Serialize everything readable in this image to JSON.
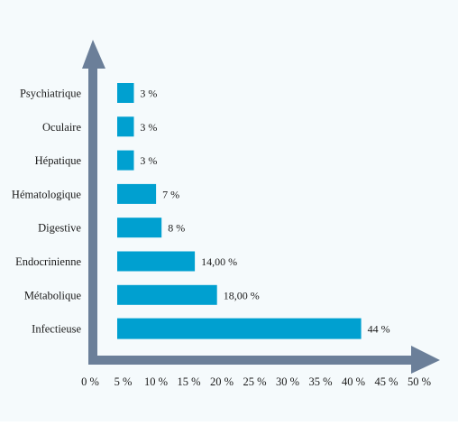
{
  "chart_data": {
    "type": "bar",
    "orientation": "horizontal",
    "title": "",
    "xlabel": "",
    "ylabel": "",
    "categories": [
      "Psychiatrique",
      "Oculaire",
      "Hépatique",
      "Hématologique",
      "Digestive",
      "Endocrinienne",
      "Métabolique",
      "Infectieuse"
    ],
    "values": [
      3,
      3,
      3,
      7,
      8,
      14,
      18,
      44
    ],
    "value_labels": [
      "3 %",
      "3 %",
      "3 %",
      "7 %",
      "8 %",
      "14,00 %",
      "18,00 %",
      "44 %"
    ],
    "xlim": [
      0,
      50
    ],
    "x_ticks": [
      0,
      5,
      10,
      15,
      20,
      25,
      30,
      35,
      40,
      45,
      50
    ],
    "x_tick_labels": [
      "0 %",
      "5 %",
      "10 %",
      "15 %",
      "20 %",
      "25 %",
      "30 %",
      "35 %",
      "40 %",
      "45 %",
      "50 %"
    ],
    "grid": false,
    "legend": "none",
    "colors": {
      "bar": "#00a0d0",
      "axis": "#6b7f99",
      "background": "#f5fafc"
    }
  }
}
